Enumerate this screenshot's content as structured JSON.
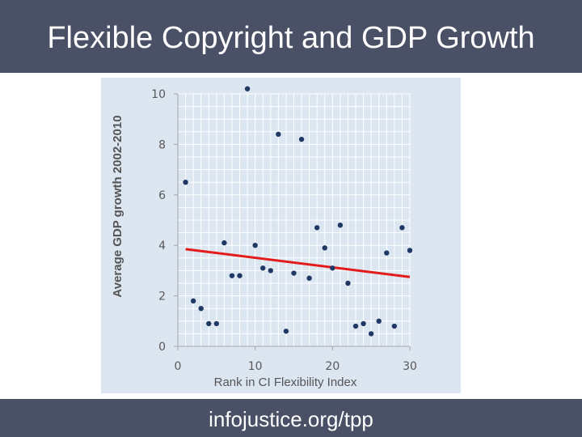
{
  "header": {
    "title": "Flexible Copyright and GDP Growth"
  },
  "footer": {
    "text": "infojustice.org/tpp"
  },
  "colors": {
    "banner": "#4a5166",
    "plot_background": "#dce6f1",
    "points": "#1f3864",
    "trendline": "#e31b1b"
  },
  "chart_data": {
    "type": "scatter",
    "title": "",
    "xlabel": "Rank in CI Flexibility Index",
    "ylabel": "Average GDP growth 2002-2010",
    "xlim": [
      0,
      30
    ],
    "ylim": [
      0,
      10
    ],
    "x_ticks": [
      0,
      10,
      20,
      30
    ],
    "y_ticks": [
      0,
      2,
      4,
      6,
      8,
      10
    ],
    "grid": true,
    "legend": "none",
    "series": [
      {
        "points": [
          {
            "x": 1,
            "y": 6.5
          },
          {
            "x": 2,
            "y": 1.8
          },
          {
            "x": 3,
            "y": 1.5
          },
          {
            "x": 4,
            "y": 0.9
          },
          {
            "x": 5,
            "y": 0.9
          },
          {
            "x": 6,
            "y": 4.1
          },
          {
            "x": 7,
            "y": 2.8
          },
          {
            "x": 8,
            "y": 2.8
          },
          {
            "x": 9,
            "y": 10.2
          },
          {
            "x": 10,
            "y": 4.0
          },
          {
            "x": 11,
            "y": 3.1
          },
          {
            "x": 12,
            "y": 3.0
          },
          {
            "x": 13,
            "y": 8.4
          },
          {
            "x": 14,
            "y": 0.6
          },
          {
            "x": 15,
            "y": 2.9
          },
          {
            "x": 16,
            "y": 8.2
          },
          {
            "x": 17,
            "y": 2.7
          },
          {
            "x": 18,
            "y": 4.7
          },
          {
            "x": 19,
            "y": 3.9
          },
          {
            "x": 20,
            "y": 3.1
          },
          {
            "x": 21,
            "y": 4.8
          },
          {
            "x": 22,
            "y": 2.5
          },
          {
            "x": 23,
            "y": 0.8
          },
          {
            "x": 24,
            "y": 0.9
          },
          {
            "x": 25,
            "y": 0.5
          },
          {
            "x": 26,
            "y": 1.0
          },
          {
            "x": 27,
            "y": 3.7
          },
          {
            "x": 28,
            "y": 0.8
          },
          {
            "x": 29,
            "y": 4.7
          },
          {
            "x": 30,
            "y": 3.8
          }
        ]
      }
    ],
    "trendline": {
      "x": [
        1,
        30
      ],
      "y": [
        3.85,
        2.75
      ]
    }
  }
}
